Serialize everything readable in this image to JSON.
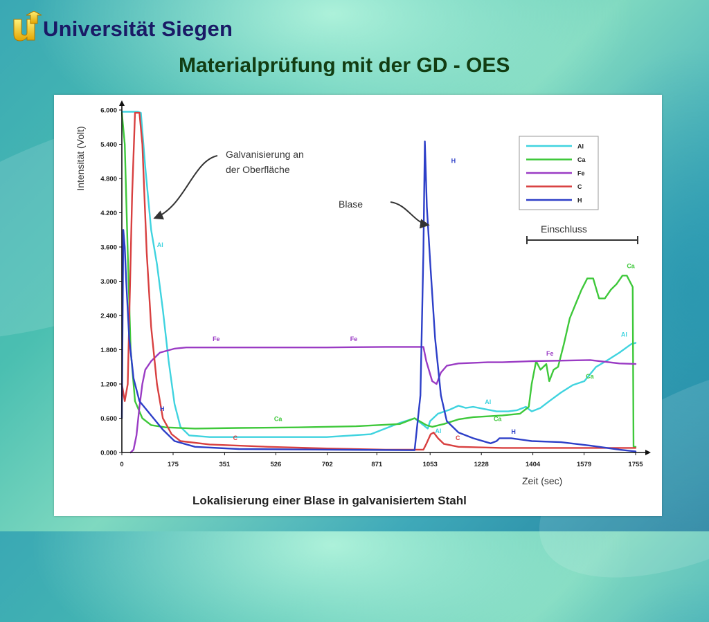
{
  "header": {
    "university": "Universität Siegen",
    "title": "Materialprüfung mit der GD - OES"
  },
  "chart_data": {
    "type": "line",
    "title": "Lokalisierung einer Blase in galvanisiertem Stahl",
    "xlabel": "Zeit (sec)",
    "ylabel": "Intensität (Volt)",
    "xlim": [
      0,
      1755
    ],
    "ylim": [
      0,
      6
    ],
    "x_ticks": [
      "0",
      "175",
      "351",
      "526",
      "702",
      "871",
      "1053",
      "1228",
      "1404",
      "1579",
      "1755"
    ],
    "x_tick_values": [
      0,
      175,
      351,
      526,
      702,
      871,
      1053,
      1228,
      1404,
      1579,
      1755
    ],
    "y_ticks": [
      "0.000",
      "0.600",
      "1.200",
      "1.800",
      "2.400",
      "3.000",
      "3.600",
      "4.200",
      "4.800",
      "5.400",
      "6.000"
    ],
    "y_tick_values": [
      0,
      0.6,
      1.2,
      1.8,
      2.4,
      3.0,
      3.6,
      4.2,
      4.8,
      5.4,
      6.0
    ],
    "legend_position": "top-right",
    "series": [
      {
        "name": "Al",
        "color": "#3fd3df",
        "label_text": "Al",
        "labels": [
          [
            120,
            3.6
          ],
          [
            1070,
            0.34
          ],
          [
            1240,
            0.85
          ],
          [
            1705,
            2.03
          ]
        ],
        "points": [
          [
            0,
            5.97
          ],
          [
            55,
            5.97
          ],
          [
            65,
            5.95
          ],
          [
            80,
            5.0
          ],
          [
            100,
            3.9
          ],
          [
            120,
            3.3
          ],
          [
            140,
            2.5
          ],
          [
            160,
            1.6
          ],
          [
            180,
            0.85
          ],
          [
            200,
            0.45
          ],
          [
            230,
            0.3
          ],
          [
            300,
            0.27
          ],
          [
            500,
            0.27
          ],
          [
            700,
            0.27
          ],
          [
            850,
            0.32
          ],
          [
            900,
            0.42
          ],
          [
            950,
            0.52
          ],
          [
            1000,
            0.6
          ],
          [
            1030,
            0.48
          ],
          [
            1045,
            0.42
          ],
          [
            1053,
            0.55
          ],
          [
            1080,
            0.68
          ],
          [
            1120,
            0.75
          ],
          [
            1150,
            0.82
          ],
          [
            1175,
            0.78
          ],
          [
            1200,
            0.8
          ],
          [
            1240,
            0.76
          ],
          [
            1280,
            0.72
          ],
          [
            1320,
            0.72
          ],
          [
            1350,
            0.74
          ],
          [
            1380,
            0.8
          ],
          [
            1400,
            0.72
          ],
          [
            1430,
            0.78
          ],
          [
            1460,
            0.9
          ],
          [
            1500,
            1.05
          ],
          [
            1540,
            1.18
          ],
          [
            1580,
            1.25
          ],
          [
            1620,
            1.5
          ],
          [
            1660,
            1.62
          ],
          [
            1700,
            1.75
          ],
          [
            1740,
            1.9
          ],
          [
            1755,
            1.92
          ]
        ]
      },
      {
        "name": "Ca",
        "color": "#3ec83a",
        "label_text": "Ca",
        "labels": [
          [
            520,
            0.55
          ],
          [
            1270,
            0.55
          ],
          [
            1585,
            1.3
          ],
          [
            1725,
            3.23
          ]
        ],
        "points": [
          [
            0,
            5.95
          ],
          [
            10,
            5.4
          ],
          [
            20,
            3.5
          ],
          [
            30,
            1.8
          ],
          [
            45,
            0.9
          ],
          [
            70,
            0.6
          ],
          [
            100,
            0.48
          ],
          [
            150,
            0.44
          ],
          [
            250,
            0.42
          ],
          [
            400,
            0.43
          ],
          [
            600,
            0.44
          ],
          [
            800,
            0.46
          ],
          [
            950,
            0.5
          ],
          [
            1000,
            0.6
          ],
          [
            1040,
            0.48
          ],
          [
            1060,
            0.45
          ],
          [
            1100,
            0.5
          ],
          [
            1150,
            0.58
          ],
          [
            1200,
            0.62
          ],
          [
            1300,
            0.65
          ],
          [
            1360,
            0.68
          ],
          [
            1390,
            0.8
          ],
          [
            1400,
            1.2
          ],
          [
            1415,
            1.6
          ],
          [
            1430,
            1.45
          ],
          [
            1450,
            1.55
          ],
          [
            1460,
            1.25
          ],
          [
            1475,
            1.45
          ],
          [
            1490,
            1.5
          ],
          [
            1510,
            1.9
          ],
          [
            1530,
            2.35
          ],
          [
            1550,
            2.6
          ],
          [
            1570,
            2.85
          ],
          [
            1590,
            3.05
          ],
          [
            1610,
            3.05
          ],
          [
            1630,
            2.7
          ],
          [
            1650,
            2.7
          ],
          [
            1670,
            2.85
          ],
          [
            1690,
            2.95
          ],
          [
            1710,
            3.1
          ],
          [
            1725,
            3.1
          ],
          [
            1745,
            2.9
          ],
          [
            1748,
            0.1
          ],
          [
            1755,
            0.1
          ]
        ]
      },
      {
        "name": "Fe",
        "color": "#9a3bc4",
        "label_text": "Fe",
        "labels": [
          [
            310,
            1.95
          ],
          [
            780,
            1.95
          ],
          [
            1450,
            1.7
          ]
        ],
        "points": [
          [
            30,
            0
          ],
          [
            40,
            0.05
          ],
          [
            50,
            0.3
          ],
          [
            60,
            0.8
          ],
          [
            70,
            1.2
          ],
          [
            80,
            1.45
          ],
          [
            100,
            1.6
          ],
          [
            130,
            1.75
          ],
          [
            180,
            1.82
          ],
          [
            220,
            1.84
          ],
          [
            400,
            1.84
          ],
          [
            700,
            1.84
          ],
          [
            900,
            1.85
          ],
          [
            1030,
            1.85
          ],
          [
            1040,
            1.6
          ],
          [
            1060,
            1.25
          ],
          [
            1075,
            1.2
          ],
          [
            1090,
            1.4
          ],
          [
            1110,
            1.52
          ],
          [
            1150,
            1.56
          ],
          [
            1250,
            1.58
          ],
          [
            1300,
            1.58
          ],
          [
            1400,
            1.6
          ],
          [
            1600,
            1.62
          ],
          [
            1700,
            1.56
          ],
          [
            1755,
            1.55
          ]
        ]
      },
      {
        "name": "C",
        "color": "#d84040",
        "label_text": "C",
        "labels": [
          [
            380,
            0.22
          ],
          [
            1140,
            0.22
          ]
        ],
        "points": [
          [
            0,
            1.2
          ],
          [
            10,
            0.9
          ],
          [
            20,
            1.2
          ],
          [
            35,
            4.5
          ],
          [
            45,
            5.95
          ],
          [
            60,
            5.95
          ],
          [
            70,
            5.4
          ],
          [
            85,
            3.5
          ],
          [
            100,
            2.2
          ],
          [
            120,
            1.2
          ],
          [
            140,
            0.6
          ],
          [
            170,
            0.32
          ],
          [
            200,
            0.2
          ],
          [
            300,
            0.14
          ],
          [
            500,
            0.1
          ],
          [
            700,
            0.07
          ],
          [
            900,
            0.05
          ],
          [
            1030,
            0.05
          ],
          [
            1040,
            0.15
          ],
          [
            1055,
            0.32
          ],
          [
            1065,
            0.35
          ],
          [
            1080,
            0.25
          ],
          [
            1100,
            0.15
          ],
          [
            1150,
            0.1
          ],
          [
            1300,
            0.08
          ],
          [
            1500,
            0.08
          ],
          [
            1755,
            0.08
          ]
        ]
      },
      {
        "name": "H",
        "color": "#2d3fc8",
        "label_text": "H",
        "labels": [
          [
            130,
            0.73
          ],
          [
            1125,
            5.07
          ],
          [
            1330,
            0.33
          ]
        ],
        "points": [
          [
            0,
            0.6
          ],
          [
            5,
            3.9
          ],
          [
            10,
            3.6
          ],
          [
            15,
            3.0
          ],
          [
            25,
            2.0
          ],
          [
            40,
            1.3
          ],
          [
            60,
            0.9
          ],
          [
            100,
            0.65
          ],
          [
            140,
            0.4
          ],
          [
            180,
            0.2
          ],
          [
            250,
            0.1
          ],
          [
            400,
            0.06
          ],
          [
            700,
            0.05
          ],
          [
            1000,
            0.04
          ],
          [
            1020,
            1.0
          ],
          [
            1030,
            3.5
          ],
          [
            1035,
            5.45
          ],
          [
            1042,
            4.3
          ],
          [
            1055,
            3.2
          ],
          [
            1070,
            2.0
          ],
          [
            1090,
            1.0
          ],
          [
            1110,
            0.55
          ],
          [
            1150,
            0.35
          ],
          [
            1200,
            0.25
          ],
          [
            1260,
            0.16
          ],
          [
            1280,
            0.2
          ],
          [
            1290,
            0.25
          ],
          [
            1330,
            0.25
          ],
          [
            1400,
            0.2
          ],
          [
            1500,
            0.18
          ],
          [
            1600,
            0.12
          ],
          [
            1700,
            0.05
          ],
          [
            1755,
            0.02
          ]
        ]
      }
    ],
    "annotations": [
      {
        "line1": "Galvanisierung an",
        "line2": "der Oberfläche"
      },
      {
        "text": "Blase"
      },
      {
        "text": "Einschluss",
        "x_range": [
          1400,
          1755
        ]
      }
    ]
  }
}
